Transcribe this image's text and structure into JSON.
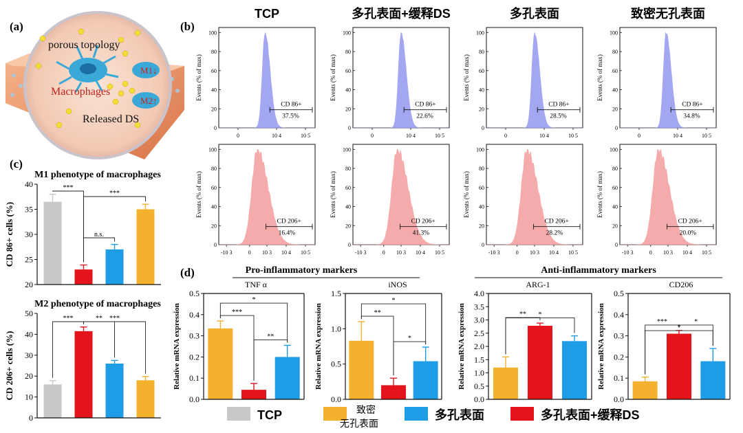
{
  "panel_labels": {
    "a": "(a)",
    "b": "(b)",
    "c": "(c)",
    "d": "(d)"
  },
  "illustration": {
    "porous": "porous topology",
    "macrophages": "Macrophages",
    "released": "Released DS",
    "m1": "M1↓",
    "m2": "M2↑"
  },
  "flow": {
    "columns": [
      "TCP",
      "多孔表面+缓释DS",
      "多孔表面",
      "致密无孔表面"
    ],
    "ylabel": "Events (% of max)",
    "yticks": [
      "0",
      "20",
      "40",
      "60",
      "80",
      "100"
    ],
    "xticks_top": [
      "0",
      "10 4",
      "10 5"
    ],
    "xticks_bottom": [
      "-10 3",
      "0",
      "10 3",
      "10 4",
      "10 5"
    ],
    "cd86_label": "CD 86+",
    "cd206_label": "CD 206+",
    "cd86_values": [
      "37.5%",
      "22.6%",
      "28.5%",
      "34.8%"
    ],
    "cd206_values": [
      "16.4%",
      "41.3%",
      "28.2%",
      "20.0%"
    ],
    "colors": {
      "cd86": "#9a9ef0",
      "cd206": "#f4a3a3"
    }
  },
  "legend": {
    "items": [
      {
        "label": "TCP",
        "color": "#c8c8c8"
      },
      {
        "label": "致密无孔表面",
        "color": "#f4b12e"
      },
      {
        "label": "多孔表面",
        "color": "#1e9de6"
      },
      {
        "label": "多孔表面+缓释DS",
        "color": "#e3141b"
      }
    ]
  },
  "chart_data": [
    {
      "id": "c1",
      "type": "bar",
      "title": "M1 phenotype of macrophages",
      "ylabel": "CD 86+ cells (%)",
      "xlabel": "",
      "ylim": [
        20,
        40
      ],
      "yticks": [
        20,
        25,
        30,
        35,
        40
      ],
      "categories": [
        "TCP",
        "多孔表面+缓释DS",
        "多孔表面",
        "致密无孔表面"
      ],
      "values": [
        36.5,
        23.0,
        27.0,
        35.0
      ],
      "errors": [
        1.5,
        0.9,
        1.0,
        1.0
      ],
      "colors": [
        "#c8c8c8",
        "#e3141b",
        "#1e9de6",
        "#f4b12e"
      ],
      "annotations": [
        {
          "from": 0,
          "to": 1,
          "text": "***"
        },
        {
          "from": 1,
          "to": 3,
          "text": "***"
        },
        {
          "from": 1,
          "to": 2,
          "text": "n.s."
        }
      ]
    },
    {
      "id": "c2",
      "type": "bar",
      "title": "M2 phenotype of macrophages",
      "ylabel": "CD 206+ cells (%)",
      "xlabel": "",
      "ylim": [
        0,
        50
      ],
      "yticks": [
        0,
        10,
        20,
        30,
        40,
        50
      ],
      "categories": [
        "TCP",
        "多孔表面+缓释DS",
        "多孔表面",
        "致密无孔表面"
      ],
      "values": [
        16.0,
        41.5,
        26.0,
        18.0
      ],
      "errors": [
        1.8,
        2.0,
        1.5,
        1.8
      ],
      "colors": [
        "#c8c8c8",
        "#e3141b",
        "#1e9de6",
        "#f4b12e"
      ],
      "annotations": [
        {
          "from": 0,
          "to": 1,
          "text": "***"
        },
        {
          "from": 1,
          "to": 2,
          "text": "**"
        },
        {
          "from": 1,
          "to": 3,
          "text": "***"
        }
      ]
    },
    {
      "id": "d1",
      "type": "bar",
      "group": "Pro-inflammatory markers",
      "title": "TNF α",
      "ylabel": "Relative mRNA expression",
      "ylim": [
        0,
        0.5
      ],
      "yticks": [
        0.0,
        0.1,
        0.2,
        0.3,
        0.4,
        0.5
      ],
      "categories": [
        "致密无孔表面",
        "多孔表面+缓释DS",
        "多孔表面"
      ],
      "values": [
        0.335,
        0.045,
        0.2
      ],
      "errors": [
        0.035,
        0.03,
        0.055
      ],
      "colors": [
        "#f4b12e",
        "#e3141b",
        "#1e9de6"
      ],
      "annotations": [
        {
          "from": 0,
          "to": 1,
          "text": "***"
        },
        {
          "from": 1,
          "to": 2,
          "text": "**"
        },
        {
          "from": 0,
          "to": 2,
          "text": "*"
        }
      ]
    },
    {
      "id": "d2",
      "type": "bar",
      "group": "Pro-inflammatory markers",
      "title": "iNOS",
      "ylabel": "Relative mRNA expression",
      "ylim": [
        0,
        1.5
      ],
      "yticks": [
        0.0,
        0.5,
        1.0,
        1.5
      ],
      "categories": [
        "致密无孔表面",
        "多孔表面+缓释DS",
        "多孔表面"
      ],
      "values": [
        0.83,
        0.2,
        0.54
      ],
      "errors": [
        0.27,
        0.1,
        0.2
      ],
      "colors": [
        "#f4b12e",
        "#e3141b",
        "#1e9de6"
      ],
      "annotations": [
        {
          "from": 0,
          "to": 1,
          "text": "**"
        },
        {
          "from": 1,
          "to": 2,
          "text": "*"
        },
        {
          "from": 0,
          "to": 2,
          "text": "*"
        }
      ]
    },
    {
      "id": "d3",
      "type": "bar",
      "group": "Anti-inflammatory markers",
      "title": "ARG-1",
      "ylabel": "Relative mRNA expression",
      "ylim": [
        0,
        4.0
      ],
      "yticks": [
        0.0,
        0.5,
        1.0,
        1.5,
        2.0,
        2.5,
        3.0,
        3.5,
        4.0
      ],
      "categories": [
        "致密无孔表面",
        "多孔表面+缓释DS",
        "多孔表面"
      ],
      "values": [
        1.2,
        2.78,
        2.2
      ],
      "errors": [
        0.4,
        0.1,
        0.2
      ],
      "colors": [
        "#f4b12e",
        "#e3141b",
        "#1e9de6"
      ],
      "annotations": [
        {
          "from": 0,
          "to": 1,
          "text": "**"
        },
        {
          "from": 0,
          "to": 2,
          "text": "*"
        }
      ]
    },
    {
      "id": "d4",
      "type": "bar",
      "group": "Anti-inflammatory markers",
      "title": "CD206",
      "ylabel": "Relative mRNA expression",
      "ylim": [
        0,
        0.5
      ],
      "yticks": [
        0.0,
        0.1,
        0.2,
        0.3,
        0.4,
        0.5
      ],
      "categories": [
        "致密无孔表面",
        "多孔表面+缓释DS",
        "多孔表面"
      ],
      "values": [
        0.085,
        0.31,
        0.18
      ],
      "errors": [
        0.02,
        0.015,
        0.06
      ],
      "colors": [
        "#f4b12e",
        "#e3141b",
        "#1e9de6"
      ],
      "annotations": [
        {
          "from": 0,
          "to": 1,
          "text": "***"
        },
        {
          "from": 1,
          "to": 2,
          "text": "*"
        },
        {
          "from": 0,
          "to": 2,
          "text": "*"
        }
      ]
    }
  ]
}
